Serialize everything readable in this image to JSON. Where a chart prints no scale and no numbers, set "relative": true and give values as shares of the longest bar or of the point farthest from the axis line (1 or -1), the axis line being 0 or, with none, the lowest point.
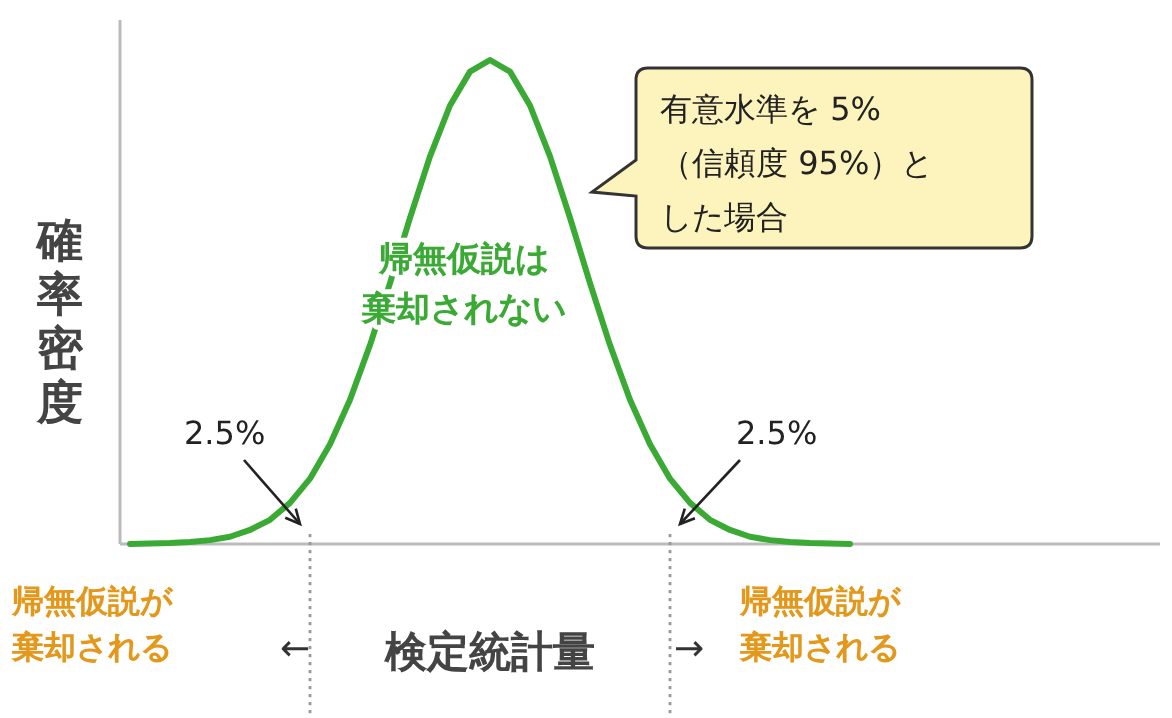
{
  "chart_data": {
    "type": "line",
    "relative": true,
    "ylabel": "確率密度",
    "xlabel": "検定統計量",
    "categories": [
      null,
      null,
      null,
      null,
      null,
      null,
      null,
      null,
      null,
      null,
      null,
      null,
      null,
      null,
      null,
      null,
      null,
      null,
      null,
      null,
      null,
      null,
      null,
      null,
      null,
      null,
      null,
      null,
      null,
      null,
      null,
      null,
      null,
      null,
      null,
      null,
      null,
      null,
      null,
      null,
      null,
      null,
      null,
      null,
      null,
      null,
      null,
      null,
      null,
      null,
      null,
      null
    ],
    "series": [
      {
        "color": "#3aaa35",
        "values": [
          0,
          0.001,
          0.002,
          0.004,
          0.008,
          0.015,
          0.029,
          0.05,
          0.085,
          0.135,
          0.206,
          0.298,
          0.411,
          0.539,
          0.674,
          0.801,
          0.906,
          0.976,
          1,
          0.976,
          0.906,
          0.801,
          0.674,
          0.539,
          0.411,
          0.298,
          0.206,
          0.135,
          0.085,
          0.05,
          0.029,
          0.015,
          0.008,
          0.004,
          0.002,
          0.001,
          0,
          null,
          null,
          null,
          null,
          null,
          null,
          null,
          null,
          null,
          null,
          null,
          null,
          null,
          null,
          null
        ]
      }
    ],
    "annotations": [
      "有意水準を 5%",
      "（信頼度 95%）と",
      "した場合",
      "帰無仮説は",
      "棄却されない",
      "2.5%",
      "2.5%",
      "帰無仮説が",
      "棄却される",
      "←",
      "→",
      "帰無仮説が",
      "棄却される"
    ],
    "marker": "none",
    "line_style": "solid"
  }
}
